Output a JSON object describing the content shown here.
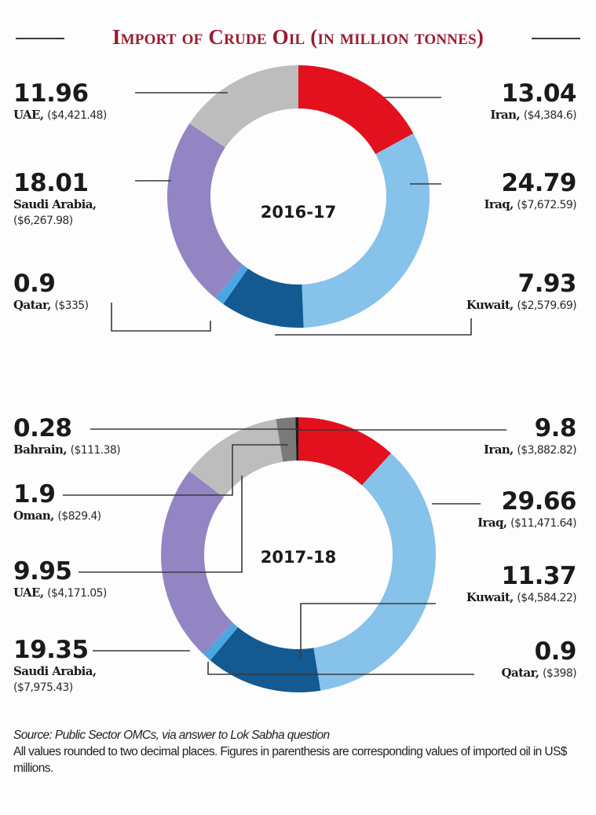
{
  "title": "Import of Crude Oil (in million tonnes)",
  "chart_data": [
    {
      "type": "pie",
      "variant": "donut",
      "title": "Import of Crude Oil (in million tonnes)",
      "center_label": "2016-17",
      "unit": "million tonnes",
      "slices": [
        {
          "name": "Iran",
          "value": 13.04,
          "value_label": "13.04",
          "usd": "($4,384.6)",
          "color": "#e3101e"
        },
        {
          "name": "Iraq",
          "value": 24.79,
          "value_label": "24.79",
          "usd": "($7,672.59)",
          "color": "#86c2ea"
        },
        {
          "name": "Kuwait",
          "value": 7.93,
          "value_label": "7.93",
          "usd": "($2,579.69)",
          "color": "#135a92"
        },
        {
          "name": "Qatar",
          "value": 0.9,
          "value_label": "0.9",
          "usd": "($335)",
          "color": "#4aa7e2"
        },
        {
          "name": "Saudi Arabia",
          "value": 18.01,
          "value_label": "18.01",
          "usd": "($6,267.98)",
          "color": "#9385c3"
        },
        {
          "name": "UAE",
          "value": 11.96,
          "value_label": "11.96",
          "usd": "($4,421.48)",
          "color": "#bdbdbd"
        }
      ]
    },
    {
      "type": "pie",
      "variant": "donut",
      "title": "Import of Crude Oil (in million tonnes)",
      "center_label": "2017-18",
      "unit": "million tonnes",
      "slices": [
        {
          "name": "Iran",
          "value": 9.8,
          "value_label": "9.8",
          "usd": "($3,882.82)",
          "color": "#e3101e"
        },
        {
          "name": "Iraq",
          "value": 29.66,
          "value_label": "29.66",
          "usd": "($11,471.64)",
          "color": "#86c2ea"
        },
        {
          "name": "Kuwait",
          "value": 11.37,
          "value_label": "11.37",
          "usd": "($4,584.22)",
          "color": "#135a92"
        },
        {
          "name": "Qatar",
          "value": 0.9,
          "value_label": "0.9",
          "usd": "($398)",
          "color": "#4aa7e2"
        },
        {
          "name": "Saudi Arabia",
          "value": 19.35,
          "value_label": "19.35",
          "usd": "($7,975.43)",
          "color": "#9385c3"
        },
        {
          "name": "UAE",
          "value": 9.95,
          "value_label": "9.95",
          "usd": "($4,171.05)",
          "color": "#bdbdbd"
        },
        {
          "name": "Oman",
          "value": 1.9,
          "value_label": "1.9",
          "usd": "($829.4)",
          "color": "#7a7a7a"
        },
        {
          "name": "Bahrain",
          "value": 0.28,
          "value_label": "0.28",
          "usd": "($111.38)",
          "color": "#1a1a1a"
        }
      ]
    }
  ],
  "footer": {
    "source": "Source: Public Sector OMCs, via answer to Lok Sabha question",
    "note": "All values rounded to two decimal places. Figures in parenthesis are corresponding values of imported oil in US$ millions."
  }
}
